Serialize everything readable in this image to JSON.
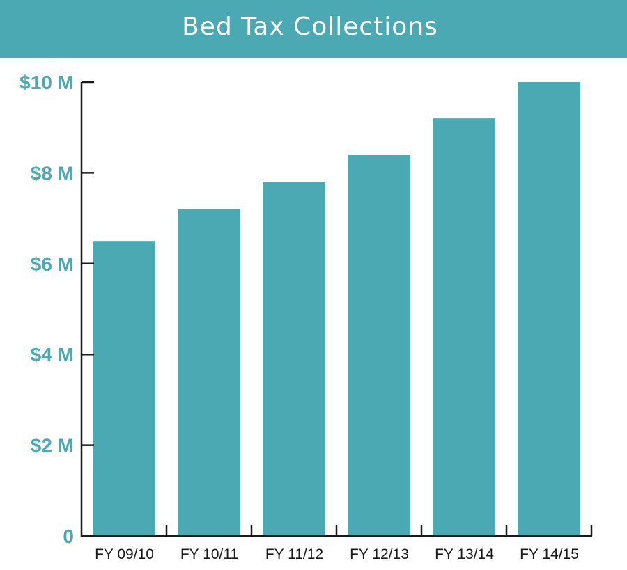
{
  "colors": {
    "accent": "#4aa9b2",
    "bar": "#4aa9b2",
    "axis": "#1a1a1a",
    "title_text": "#ffffff",
    "background": "#ffffff"
  },
  "chart_data": {
    "type": "bar",
    "title": "Bed Tax Collections",
    "xlabel": "",
    "ylabel": "",
    "categories": [
      "FY 09/10",
      "FY 10/11",
      "FY 11/12",
      "FY 12/13",
      "FY 13/14",
      "FY 14/15"
    ],
    "values": [
      6.5,
      7.2,
      7.8,
      8.4,
      9.2,
      10.0
    ],
    "unit": "$ millions",
    "ylim": [
      0,
      10
    ],
    "yticks": [
      0,
      2,
      4,
      6,
      8,
      10
    ],
    "ytick_labels": [
      "0",
      "$2 M",
      "$4 M",
      "$6 M",
      "$8 M",
      "$10 M"
    ],
    "grid": false,
    "legend": "none"
  }
}
